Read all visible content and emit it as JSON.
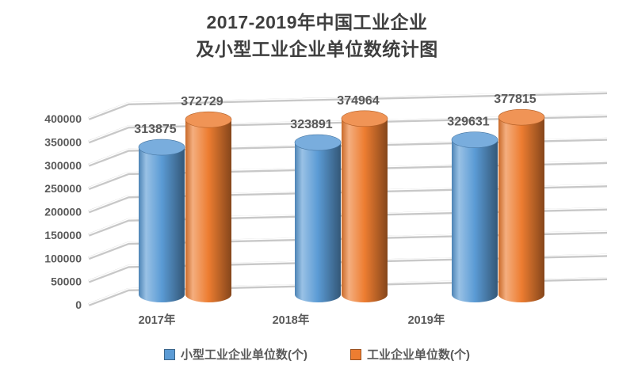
{
  "title": {
    "line1": "2017-2019年中国工业企业",
    "line2": "及小型工业企业单位数统计图"
  },
  "chart_data": {
    "type": "bar",
    "style": "3d-cylinder",
    "title": "2017-2019年中国工业企业及小型工业企业单位数统计图",
    "categories": [
      "2017年",
      "2018年",
      "2019年"
    ],
    "series": [
      {
        "name": "小型工业企业单位数(个)",
        "color": "#5B9BD5",
        "values": [
          313875,
          323891,
          329631
        ]
      },
      {
        "name": "工业企业单位数(个)",
        "color": "#ED7D31",
        "values": [
          372729,
          374964,
          377815
        ]
      }
    ],
    "ylim": [
      0,
      400000
    ],
    "y_ticks": [
      0,
      50000,
      100000,
      150000,
      200000,
      250000,
      300000,
      350000,
      400000
    ],
    "grid": true,
    "data_labels": true,
    "legend_position": "bottom"
  },
  "colors": {
    "background": "#FFFFFF",
    "title_text": "#3F3F3F",
    "axis_text": "#595959",
    "gridline": "#C8C8C8",
    "gridline_highlight": "#FFFFFF"
  }
}
